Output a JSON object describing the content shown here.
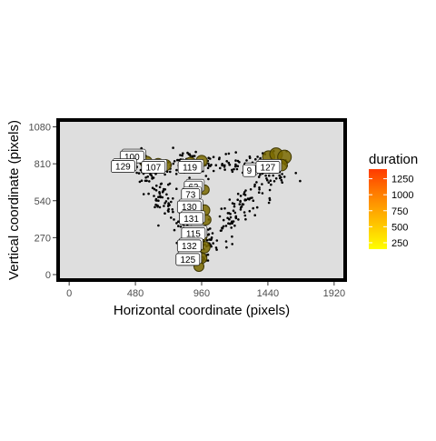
{
  "chart_data": {
    "type": "scatter",
    "xlabel": "Horizontal coordinate (pixels)",
    "ylabel": "Vertical coordinate (pixels)",
    "xlim": [
      -80,
      2000
    ],
    "ylim": [
      -40,
      1130
    ],
    "x_ticks": [
      0,
      480,
      960,
      1440,
      1920
    ],
    "y_ticks": [
      0,
      270,
      540,
      810,
      1080
    ],
    "x_tick_labels": [
      "0",
      "480",
      "960",
      "1440",
      "1920"
    ],
    "y_tick_labels": [
      "0",
      "270",
      "540",
      "810",
      "1080"
    ],
    "grid": false,
    "panel_background": "#dedede",
    "panel_border": "#000000",
    "legend": {
      "title": "duration",
      "position": "right",
      "breaks": [
        250,
        500,
        750,
        1000,
        1250
      ],
      "break_labels": [
        "250",
        "500",
        "750",
        "1000",
        "1250"
      ],
      "min": 150,
      "max": 1400,
      "colors": [
        "#ffff00",
        "#ffd000",
        "#ffa200",
        "#ff7200",
        "#ff3a00"
      ]
    },
    "fixations": [
      {
        "x": 510,
        "y": 870,
        "duration": 280
      },
      {
        "x": 560,
        "y": 820,
        "duration": 300
      },
      {
        "x": 645,
        "y": 810,
        "duration": 250
      },
      {
        "x": 700,
        "y": 800,
        "duration": 260
      },
      {
        "x": 880,
        "y": 820,
        "duration": 240
      },
      {
        "x": 960,
        "y": 830,
        "duration": 270
      },
      {
        "x": 1445,
        "y": 860,
        "duration": 300
      },
      {
        "x": 1500,
        "y": 880,
        "duration": 320
      },
      {
        "x": 1560,
        "y": 860,
        "duration": 350
      },
      {
        "x": 1540,
        "y": 800,
        "duration": 280
      },
      {
        "x": 980,
        "y": 620,
        "duration": 220
      },
      {
        "x": 980,
        "y": 470,
        "duration": 260
      },
      {
        "x": 990,
        "y": 400,
        "duration": 240
      },
      {
        "x": 960,
        "y": 280,
        "duration": 260
      },
      {
        "x": 980,
        "y": 200,
        "duration": 280
      },
      {
        "x": 960,
        "y": 120,
        "duration": 250
      },
      {
        "x": 940,
        "y": 60,
        "duration": 230
      }
    ],
    "labels": [
      {
        "text": "100",
        "x": 455,
        "y": 860
      },
      {
        "text": "129",
        "x": 390,
        "y": 790
      },
      {
        "text": "107",
        "x": 610,
        "y": 785
      },
      {
        "text": "119",
        "x": 875,
        "y": 785
      },
      {
        "text": "62",
        "x": 900,
        "y": 640
      },
      {
        "text": "73",
        "x": 880,
        "y": 585
      },
      {
        "text": "130",
        "x": 870,
        "y": 495
      },
      {
        "text": "131",
        "x": 885,
        "y": 410
      },
      {
        "text": "115",
        "x": 900,
        "y": 300
      },
      {
        "text": "132",
        "x": 870,
        "y": 210
      },
      {
        "text": "125",
        "x": 860,
        "y": 110
      },
      {
        "text": "9",
        "x": 1305,
        "y": 760
      },
      {
        "text": "127",
        "x": 1440,
        "y": 785
      }
    ]
  }
}
